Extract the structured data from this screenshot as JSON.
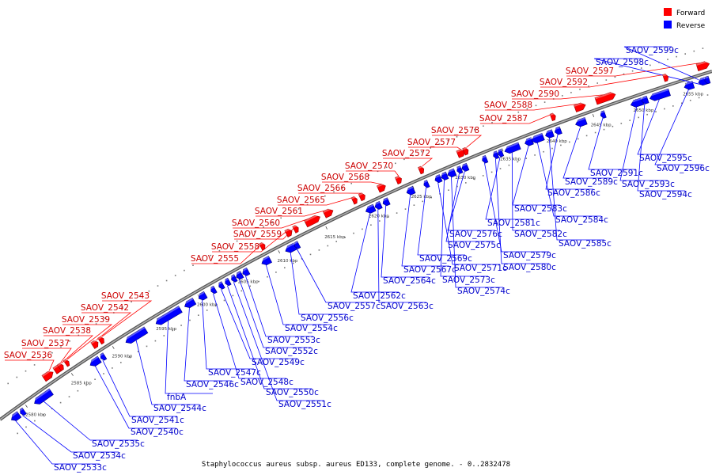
{
  "caption": "Staphylococcus aureus subsp. aureus ED133, complete genome. - 0..2832478",
  "legend": [
    {
      "label": "Forward",
      "color": "#ff0000"
    },
    {
      "label": "Reverse",
      "color": "#0000ff"
    }
  ],
  "colors": {
    "forward": "#ff0000",
    "reverse": "#0000ff",
    "forward_label": "#cc0000",
    "reverse_label": "#0000cc",
    "axis": "#808080"
  },
  "scale_ticks": [
    "2580 kbp",
    "2585 kbp",
    "2590 kbp",
    "2595 kbp",
    "2600 kbp",
    "2605 kbp",
    "2610 kbp",
    "2615 kbp",
    "2620 kbp",
    "2625 kbp",
    "2630 kbp",
    "2635 kbp",
    "2640 kbp",
    "2645 kbp",
    "2650 kbp",
    "2655 kbp"
  ],
  "forward_genes": [
    "SAOV_2536",
    "SAOV_2537",
    "SAOV_2538",
    "SAOV_2539",
    "SAOV_2542",
    "SAOV_2543",
    "SAOV_2555",
    "SAOV_2558",
    "SAOV_2559",
    "SAOV_2560",
    "SAOV_2561",
    "SAOV_2565",
    "SAOV_2566",
    "SAOV_2568",
    "SAOV_2570",
    "SAOV_2572",
    "SAOV_2577",
    "SAOV_2578",
    "SAOV_2587",
    "SAOV_2588",
    "SAOV_2590",
    "SAOV_2592",
    "SAOV_2597"
  ],
  "reverse_genes": [
    "SAOV_2533c",
    "SAOV_2534c",
    "SAOV_2535c",
    "SAOV_2540c",
    "SAOV_2541c",
    "SAOV_2544c",
    "fnbA",
    "SAOV_2546c",
    "SAOV_2547c",
    "SAOV_2548c",
    "SAOV_2549c",
    "SAOV_2550c",
    "SAOV_2551c",
    "SAOV_2552c",
    "SAOV_2553c",
    "SAOV_2554c",
    "SAOV_2556c",
    "SAOV_2557c",
    "SAOV_2562c",
    "SAOV_2563c",
    "SAOV_2564c",
    "SAOV_2567c",
    "SAOV_2569c",
    "SAOV_2571c",
    "SAOV_2573c",
    "SAOV_2574c",
    "SAOV_2575c",
    "SAOV_2576c",
    "SAOV_2579c",
    "SAOV_2580c",
    "SAOV_2581c",
    "SAOV_2582c",
    "SAOV_2583c",
    "SAOV_2584c",
    "SAOV_2585c",
    "SAOV_2586c",
    "SAOV_2589c",
    "SAOV_2591c",
    "SAOV_2593c",
    "SAOV_2594c",
    "SAOV_2595c",
    "SAOV_2596c",
    "SAOV_2598c",
    "SAOV_2599c"
  ]
}
